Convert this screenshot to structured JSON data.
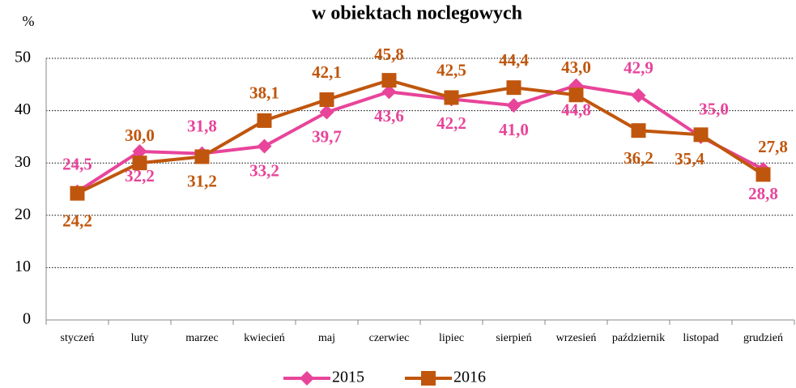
{
  "chart_data": {
    "type": "line",
    "title": "w obiektach noclegowych",
    "y_label": "%",
    "categories": [
      "styczeń",
      "luty",
      "marzec",
      "kwiecień",
      "maj",
      "czerwiec",
      "lipiec",
      "sierpień",
      "wrzesień",
      "październik",
      "listopad",
      "grudzień"
    ],
    "series": [
      {
        "name": "2015",
        "color": "#e8449a",
        "marker": "diamond",
        "values": [
          24.5,
          32.2,
          31.8,
          33.2,
          39.7,
          43.6,
          42.2,
          41.0,
          44.8,
          42.9,
          35.0,
          28.8
        ],
        "value_labels": [
          "24,5",
          "32,2",
          "31,8",
          "33,2",
          "39,7",
          "43,6",
          "42,2",
          "41,0",
          "44,8",
          "42,9",
          "35,0",
          "28,8"
        ]
      },
      {
        "name": "2016",
        "color": "#c0560d",
        "marker": "square",
        "values": [
          24.2,
          30.0,
          31.2,
          38.1,
          42.1,
          45.8,
          42.5,
          44.4,
          43.0,
          36.2,
          35.4,
          27.8
        ],
        "value_labels": [
          "24,2",
          "30,0",
          "31,2",
          "38,1",
          "42,1",
          "45,8",
          "42,5",
          "44,4",
          "43,0",
          "36,2",
          "35,4",
          "27,8"
        ]
      }
    ],
    "ylim": [
      0,
      50
    ],
    "yticks": [
      0,
      10,
      20,
      30,
      40,
      50
    ],
    "grid": true,
    "legend": "bottom"
  }
}
